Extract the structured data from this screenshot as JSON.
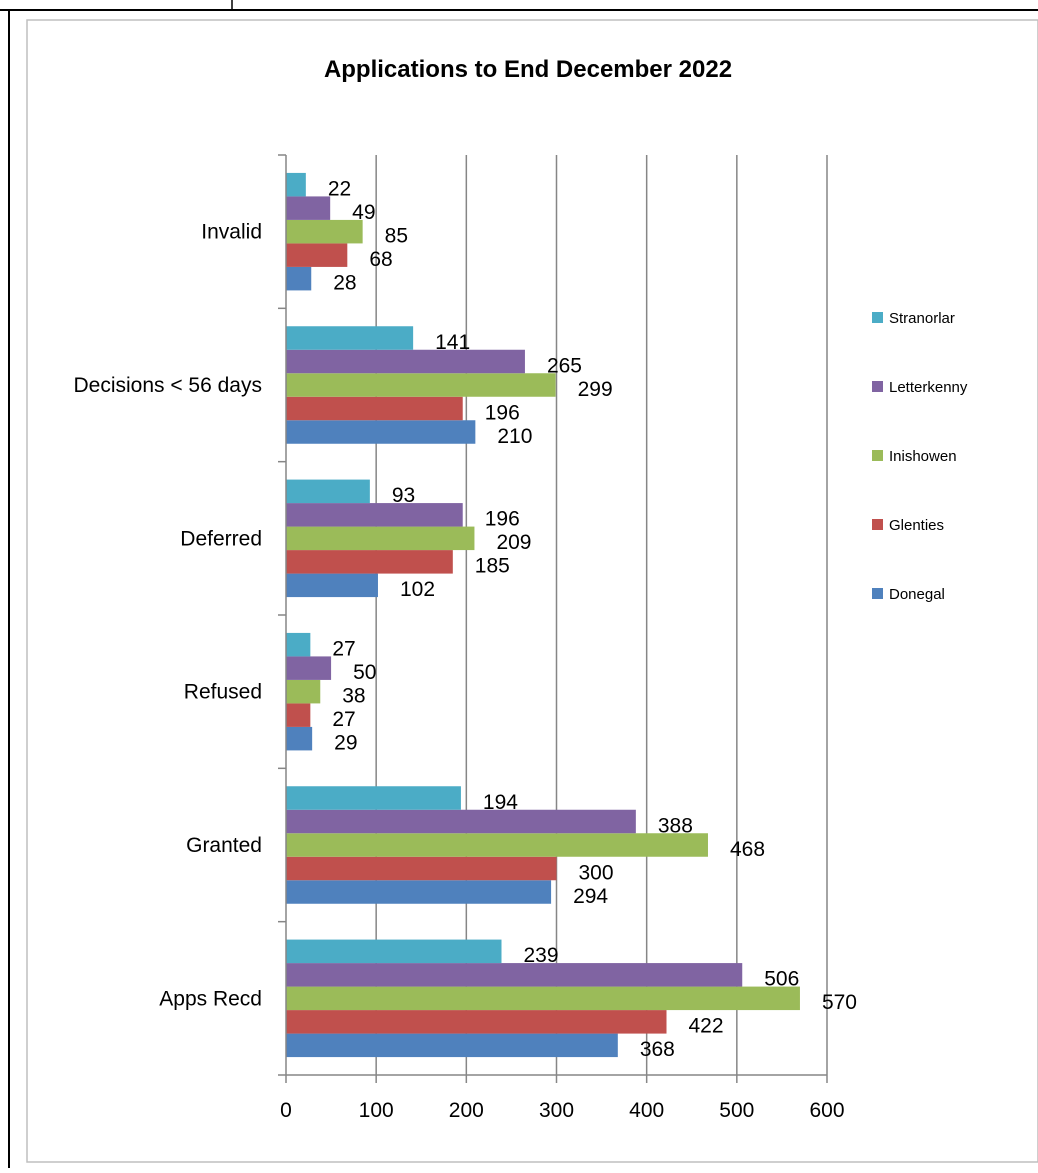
{
  "chart_data": {
    "type": "bar",
    "orientation": "horizontal",
    "title": "Applications to End December 2022",
    "categories": [
      "Apps Recd",
      "Granted",
      "Refused",
      "Deferred",
      "Decisions <  56 days",
      "Invalid"
    ],
    "series": [
      {
        "name": "Donegal",
        "color": "#4f81bd",
        "values": [
          368,
          294,
          29,
          102,
          210,
          28
        ]
      },
      {
        "name": "Glenties",
        "color": "#c0504d",
        "values": [
          422,
          300,
          27,
          185,
          196,
          68
        ]
      },
      {
        "name": "Inishowen",
        "color": "#9bbb59",
        "values": [
          570,
          468,
          38,
          209,
          299,
          85
        ]
      },
      {
        "name": "Letterkenny",
        "color": "#8064a2",
        "values": [
          506,
          388,
          50,
          196,
          265,
          49
        ]
      },
      {
        "name": "Stranorlar",
        "color": "#4bacc6",
        "values": [
          239,
          194,
          27,
          93,
          141,
          22
        ]
      }
    ],
    "xlim": [
      0,
      600
    ],
    "x_ticks": [
      0,
      100,
      200,
      300,
      400,
      500,
      600
    ],
    "grid": true,
    "legend": "right",
    "data_labels": true
  }
}
